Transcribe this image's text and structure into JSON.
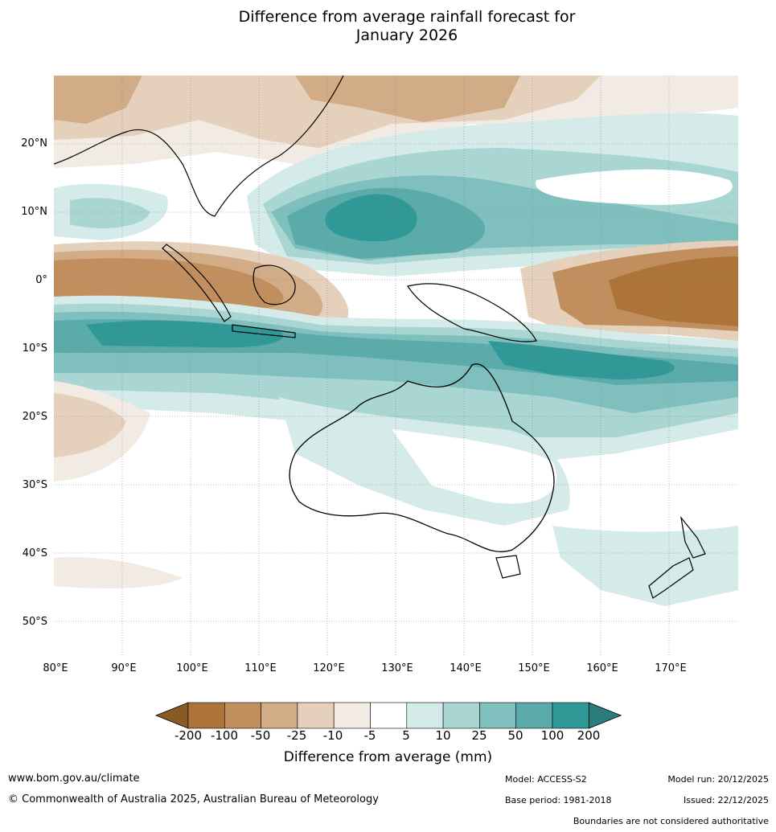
{
  "title_line1": "Difference from average rainfall forecast for",
  "title_line2": "January 2026",
  "lat_labels": [
    "20°N",
    "10°N",
    "0°",
    "10°S",
    "20°S",
    "30°S",
    "40°S",
    "50°S"
  ],
  "lon_labels": [
    "80°E",
    "90°E",
    "100°E",
    "110°E",
    "120°E",
    "130°E",
    "140°E",
    "150°E",
    "160°E",
    "170°E"
  ],
  "colorbar": {
    "labels": [
      "-200",
      "-100",
      "-50",
      "-25",
      "-10",
      "-5",
      "5",
      "10",
      "25",
      "50",
      "100",
      "200"
    ],
    "colors": [
      "#8a5a24",
      "#ad7439",
      "#c18f5e",
      "#d1ac86",
      "#e4d0bb",
      "#f2ebe3",
      "#ffffff",
      "#d4ebe9",
      "#a9d5d3",
      "#7fbfbd",
      "#5aabaa",
      "#309998",
      "#2a7d7b"
    ],
    "title": "Difference from average (mm)"
  },
  "footer": {
    "website": "www.bom.gov.au/climate",
    "copyright": "© Commonwealth of Australia 2025, Australian Bureau of Meteorology",
    "model": "Model: ACCESS-S2",
    "base_period": "Base period: 1981-2018",
    "model_run": "Model run: 20/12/2025",
    "issued": "Issued: 22/12/2025",
    "boundaries": "Boundaries are not considered authoritative"
  }
}
